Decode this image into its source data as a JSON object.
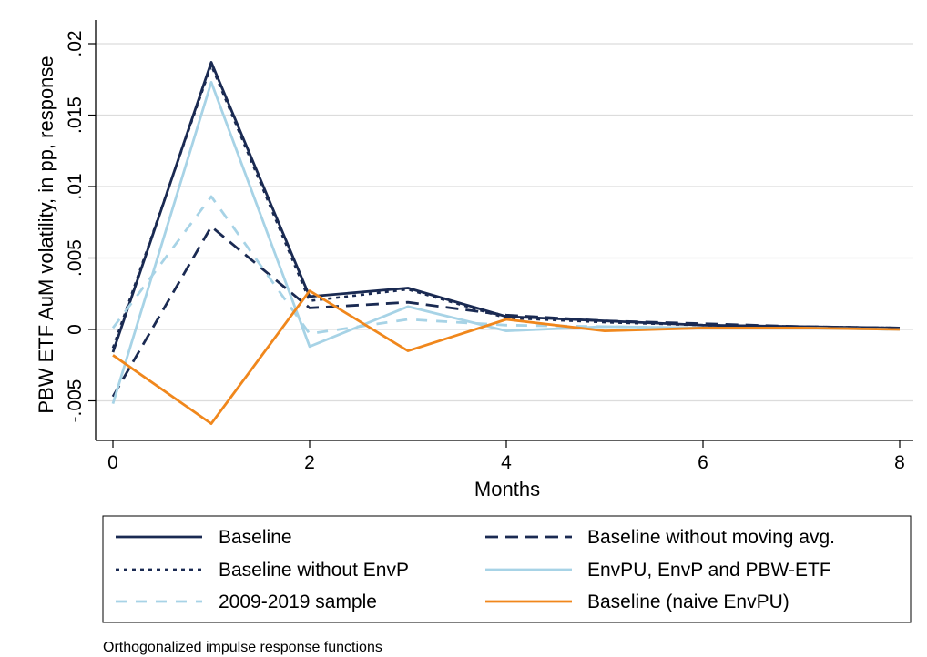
{
  "chart_data": {
    "type": "line",
    "title": "",
    "xlabel": "Months",
    "ylabel": "PBW ETF AuM volatility, in pp, response",
    "note": "Orthogonalized impulse response functions",
    "xlim": [
      0,
      8
    ],
    "ylim": [
      -0.0075,
      0.021
    ],
    "xticks": [
      0,
      2,
      4,
      6,
      8
    ],
    "xtick_labels": [
      "0",
      "2",
      "4",
      "6",
      "8"
    ],
    "yticks": [
      -0.005,
      0,
      0.005,
      0.01,
      0.015,
      0.02
    ],
    "ytick_labels": [
      "-.005",
      "0",
      ".005",
      ".01",
      ".015",
      ".02"
    ],
    "grid": "horizontal",
    "legend_position": "bottom",
    "x": [
      0,
      1,
      2,
      3,
      4,
      5,
      6,
      7,
      8
    ],
    "series": [
      {
        "name": "Baseline",
        "color": "#1a2a52",
        "dash": "solid",
        "values": [
          -0.0016,
          0.0187,
          0.0023,
          0.0029,
          0.0009,
          0.0006,
          0.0003,
          0.0002,
          0.0001
        ]
      },
      {
        "name": "Baseline without moving avg.",
        "color": "#1a2a52",
        "dash": "long",
        "values": [
          -0.0047,
          0.0072,
          0.0015,
          0.0019,
          0.001,
          0.0006,
          0.0004,
          0.0002,
          0.0001
        ]
      },
      {
        "name": "Baseline without EnvP",
        "color": "#1a2a52",
        "dash": "dot",
        "values": [
          -0.0013,
          0.0185,
          0.002,
          0.0028,
          0.0008,
          0.0005,
          0.0003,
          0.0002,
          0.0001
        ]
      },
      {
        "name": "EnvPU, EnvP and PBW-ETF",
        "color": "#a7d3e6",
        "dash": "solid",
        "values": [
          -0.0052,
          0.0173,
          -0.0012,
          0.0016,
          -0.0001,
          0.0002,
          0.0001,
          0.0001,
          0.0
        ]
      },
      {
        "name": "2009-2019 sample",
        "color": "#a7d3e6",
        "dash": "medium",
        "values": [
          0.0001,
          0.0093,
          -0.0003,
          0.0007,
          0.0003,
          0.0002,
          0.0001,
          0.0001,
          0.0
        ]
      },
      {
        "name": "Baseline (naive EnvPU)",
        "color": "#f0871c",
        "dash": "solid",
        "values": [
          -0.0018,
          -0.0066,
          0.0027,
          -0.0015,
          0.0007,
          -0.0001,
          0.0001,
          0.0001,
          0.0
        ]
      }
    ],
    "legend_order": [
      0,
      1,
      2,
      3,
      4,
      5
    ]
  }
}
